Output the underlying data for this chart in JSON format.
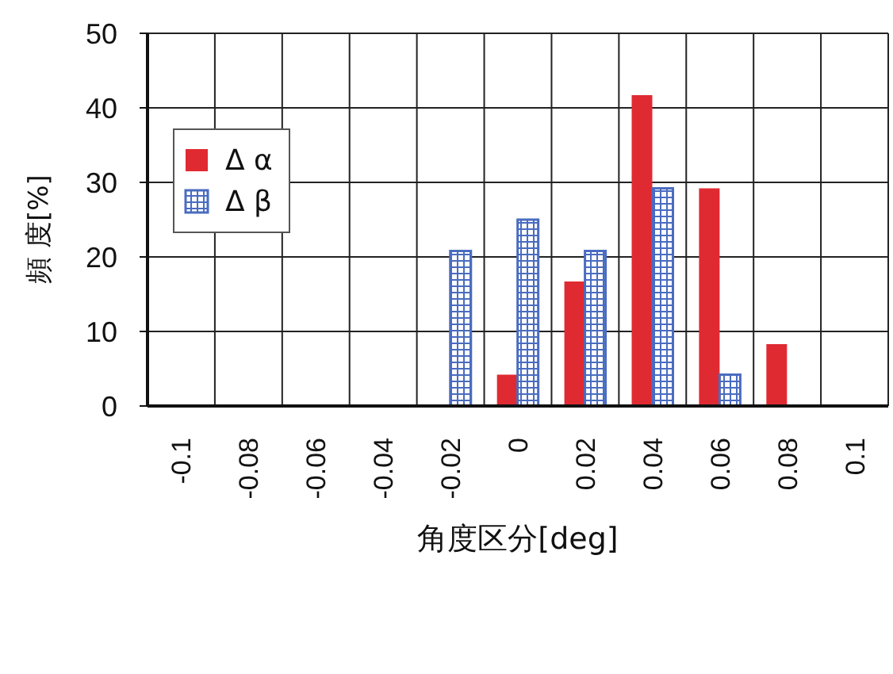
{
  "chart_data": {
    "type": "bar",
    "xlabel": "角度区分[deg]",
    "ylabel": "頻 度[%]",
    "categories": [
      "-0.1",
      "-0.08",
      "-0.06",
      "-0.04",
      "-0.02",
      "0",
      "0.02",
      "0.04",
      "0.06",
      "0.08",
      "0.1"
    ],
    "series": [
      {
        "name": "Δ α",
        "color": "#e02a32",
        "values": [
          0,
          0,
          0,
          0,
          0,
          4.2,
          16.7,
          41.7,
          29.2,
          8.3,
          0
        ]
      },
      {
        "name": "Δ β",
        "color": "#4a6cc0",
        "values": [
          0,
          0,
          0,
          0,
          20.8,
          25,
          20.8,
          29.2,
          4.2,
          0,
          0
        ]
      }
    ],
    "ylim": [
      0,
      50
    ],
    "yticks": [
      0,
      10,
      20,
      30,
      40,
      50
    ],
    "grid": true,
    "legend": "top left"
  }
}
